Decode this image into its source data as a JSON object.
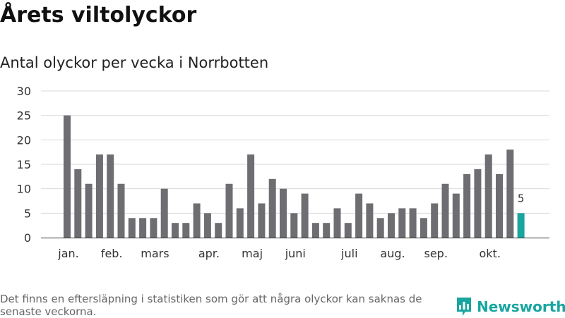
{
  "title": "Årets viltolyckor",
  "subtitle": "Antal olyckor per vecka i Norrbotten",
  "footnote": "Det finns en eftersläpning i statistiken som gör att några olyckor kan saknas de senaste veckorna.",
  "brand": {
    "name": "Newsworthy",
    "icon": "newsworthy-logo-icon"
  },
  "colors": {
    "bar": "#6e6d72",
    "highlight": "#1aa59f",
    "grid": "#d9d9d9",
    "axis": "#333333"
  },
  "chart_data": {
    "type": "bar",
    "title": "Antal olyckor per vecka i Norrbotten",
    "xlabel": "",
    "ylabel": "",
    "ylim": [
      0,
      30
    ],
    "yticks": [
      0,
      5,
      10,
      15,
      20,
      25,
      30
    ],
    "grid": true,
    "values": [
      25,
      14,
      11,
      17,
      17,
      11,
      4,
      4,
      4,
      10,
      3,
      3,
      7,
      5,
      3,
      11,
      6,
      17,
      7,
      12,
      10,
      5,
      9,
      3,
      3,
      6,
      3,
      9,
      7,
      4,
      5,
      6,
      6,
      4,
      7,
      11,
      9,
      13,
      14,
      17,
      13,
      18,
      5
    ],
    "highlight_index": 42,
    "highlight_label": "5",
    "month_labels": [
      {
        "label": "jan.",
        "week_index": 0
      },
      {
        "label": "feb.",
        "week_index": 4
      },
      {
        "label": "mars",
        "week_index": 8
      },
      {
        "label": "apr.",
        "week_index": 13
      },
      {
        "label": "maj",
        "week_index": 17
      },
      {
        "label": "juni",
        "week_index": 21
      },
      {
        "label": "juli",
        "week_index": 26
      },
      {
        "label": "aug.",
        "week_index": 30
      },
      {
        "label": "sep.",
        "week_index": 34
      },
      {
        "label": "okt.",
        "week_index": 39
      }
    ]
  }
}
